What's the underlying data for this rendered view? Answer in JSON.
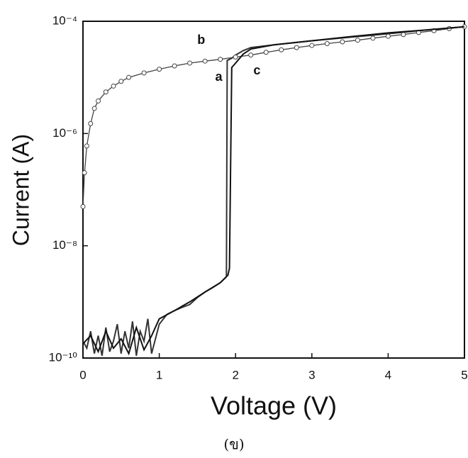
{
  "chart_data": {
    "type": "line",
    "xlabel": "Voltage (V)",
    "ylabel": "Current (A)",
    "caption": "(ข)",
    "xlim": [
      0,
      5
    ],
    "xticks": [
      0,
      1,
      2,
      3,
      4,
      5
    ],
    "ylim": [
      1e-10,
      0.0001
    ],
    "log_y": true,
    "yticks": [
      {
        "value": 1e-10,
        "label": "10⁻¹⁰"
      },
      {
        "value": 1e-08,
        "label": "10⁻⁸"
      },
      {
        "value": 1e-06,
        "label": "10⁻⁶"
      },
      {
        "value": 0.0001,
        "label": "10⁻⁴"
      }
    ],
    "series": [
      {
        "name": "a",
        "color": "#333333",
        "marker": false,
        "x": [
          0,
          0.05,
          0.1,
          0.15,
          0.2,
          0.25,
          0.3,
          0.35,
          0.4,
          0.45,
          0.5,
          0.55,
          0.6,
          0.65,
          0.7,
          0.75,
          0.8,
          0.85,
          0.9,
          1.0,
          1.1,
          1.2,
          1.3,
          1.4,
          1.5,
          1.6,
          1.7,
          1.8,
          1.88,
          1.89,
          1.95,
          2.0,
          2.1,
          2.2,
          2.5,
          3,
          3.5,
          4,
          4.5,
          5
        ],
        "values": [
          2e-10,
          1.5e-10,
          3e-10,
          1.2e-10,
          2.5e-10,
          1.1e-10,
          3.5e-10,
          1.3e-10,
          2e-10,
          4e-10,
          1.2e-10,
          3e-10,
          1.5e-10,
          4.5e-10,
          1.1e-10,
          3e-10,
          2e-10,
          5e-10,
          1.2e-10,
          4e-10,
          6e-10,
          7e-10,
          8e-10,
          9e-10,
          1.2e-09,
          1.5e-09,
          1.8e-09,
          2.2e-09,
          2.8e-09,
          2e-05,
          2.2e-05,
          2.5e-05,
          3e-05,
          3.4e-05,
          3.8e-05,
          4.5e-05,
          5.2e-05,
          6e-05,
          7e-05,
          8e-05
        ]
      },
      {
        "name": "b",
        "color": "#444444",
        "marker": true,
        "x": [
          0,
          0.02,
          0.05,
          0.1,
          0.15,
          0.2,
          0.3,
          0.4,
          0.5,
          0.6,
          0.8,
          1.0,
          1.2,
          1.4,
          1.6,
          1.8,
          2.0,
          2.2,
          2.4,
          2.6,
          2.8,
          3.0,
          3.2,
          3.4,
          3.6,
          3.8,
          4.0,
          4.2,
          4.4,
          4.6,
          4.8,
          5.0
        ],
        "values": [
          5e-08,
          2e-07,
          6e-07,
          1.5e-06,
          2.8e-06,
          3.8e-06,
          5.5e-06,
          7e-06,
          8.5e-06,
          1e-05,
          1.2e-05,
          1.4e-05,
          1.6e-05,
          1.8e-05,
          1.95e-05,
          2.1e-05,
          2.3e-05,
          2.5e-05,
          2.8e-05,
          3.1e-05,
          3.4e-05,
          3.7e-05,
          4e-05,
          4.3e-05,
          4.6e-05,
          5e-05,
          5.4e-05,
          5.8e-05,
          6.3e-05,
          6.8e-05,
          7.4e-05,
          8e-05
        ]
      },
      {
        "name": "c",
        "color": "#111111",
        "marker": false,
        "x": [
          0,
          0.1,
          0.2,
          0.3,
          0.4,
          0.5,
          0.6,
          0.7,
          0.8,
          0.9,
          1.0,
          1.2,
          1.4,
          1.6,
          1.8,
          1.9,
          1.92,
          1.95,
          2.0,
          2.1,
          2.2,
          2.5,
          3,
          3.5,
          4,
          4.5,
          5
        ],
        "values": [
          1.8e-10,
          2.5e-10,
          1.3e-10,
          3e-10,
          1.5e-10,
          2.2e-10,
          1.2e-10,
          3.5e-10,
          1.4e-10,
          2.5e-10,
          5e-10,
          7e-10,
          1e-09,
          1.5e-09,
          2.2e-09,
          3e-09,
          4e-09,
          1.5e-05,
          1.8e-05,
          2.6e-05,
          3.2e-05,
          3.8e-05,
          4.5e-05,
          5.3e-05,
          6.2e-05,
          7e-05,
          8e-05
        ]
      }
    ]
  }
}
